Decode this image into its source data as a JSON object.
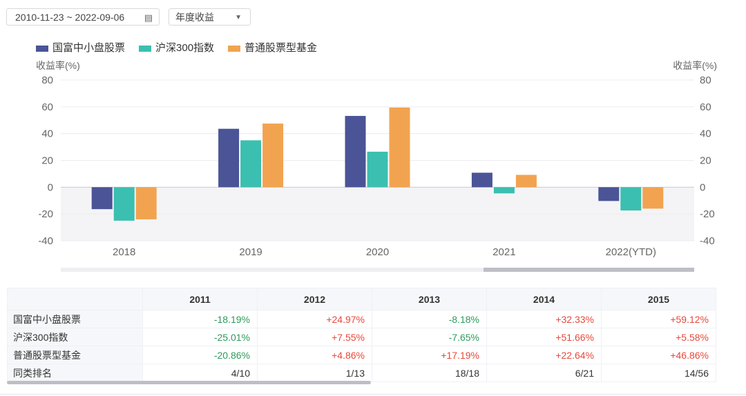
{
  "controls": {
    "date_range": "2010-11-23 ~ 2022-09-06",
    "calendar_icon": "calendar-icon",
    "select_value": "年度收益"
  },
  "colors": {
    "fund": "#4b5496",
    "index": "#3bbfb0",
    "peer": "#f2a350"
  },
  "chart_data": {
    "type": "bar",
    "categories": [
      "2018",
      "2019",
      "2020",
      "2021",
      "2022(YTD)"
    ],
    "series": [
      {
        "name": "国富中小盘股票",
        "values": [
          -16.4,
          43.6,
          53.2,
          10.8,
          -10.3
        ]
      },
      {
        "name": "沪深300指数",
        "values": [
          -25,
          35,
          26.5,
          -4.6,
          -17.4
        ]
      },
      {
        "name": "普通股票型基金",
        "values": [
          -24,
          47.5,
          59.5,
          9.2,
          -16
        ]
      }
    ],
    "ylabel_left": "收益率(%)",
    "ylabel_right": "收益率(%)",
    "ylim": [
      -40,
      80
    ],
    "yticks": [
      "80",
      "60",
      "40",
      "20",
      "0",
      "-20",
      "-40"
    ],
    "legend": "top-left",
    "grid": true
  },
  "table": {
    "headers": [
      "",
      "2011",
      "2012",
      "2013",
      "2014",
      "2015"
    ],
    "rows": [
      {
        "label": "国富中小盘股票",
        "cells": [
          "-18.19%",
          "+24.97%",
          "-8.18%",
          "+32.33%",
          "+59.12%"
        ]
      },
      {
        "label": "沪深300指数",
        "cells": [
          "-25.01%",
          "+7.55%",
          "-7.65%",
          "+51.66%",
          "+5.58%"
        ]
      },
      {
        "label": "普通股票型基金",
        "cells": [
          "-20.86%",
          "+4.86%",
          "+17.19%",
          "+22.64%",
          "+46.86%"
        ]
      },
      {
        "label": "同类排名",
        "cells": [
          "4/10",
          "1/13",
          "18/18",
          "6/21",
          "14/56"
        ]
      }
    ]
  }
}
